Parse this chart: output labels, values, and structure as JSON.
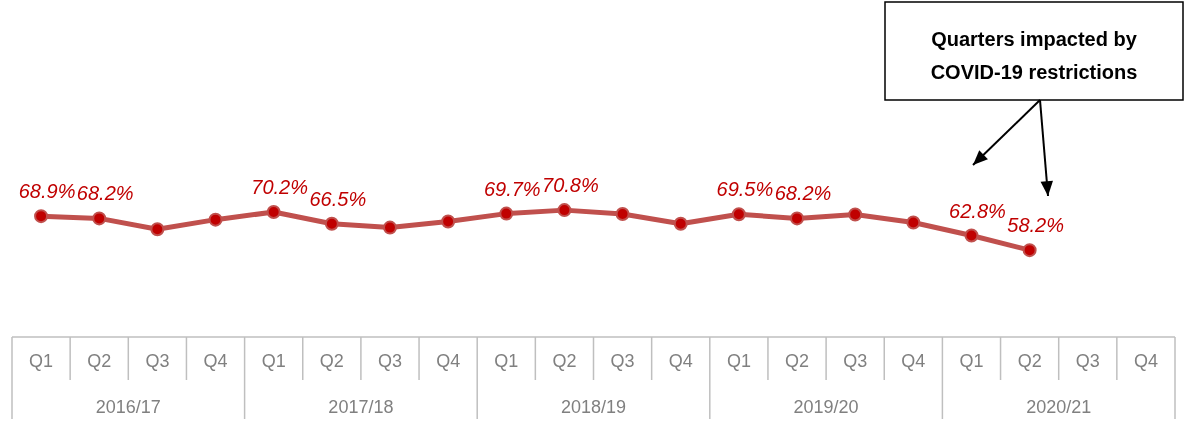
{
  "chart_data": {
    "type": "line",
    "categories": [
      "Q1",
      "Q2",
      "Q3",
      "Q4",
      "Q1",
      "Q2",
      "Q3",
      "Q4",
      "Q1",
      "Q2",
      "Q3",
      "Q4",
      "Q1",
      "Q2",
      "Q3",
      "Q4",
      "Q1",
      "Q2",
      "Q3",
      "Q4"
    ],
    "series": [
      {
        "color": "#c0504d",
        "values": [
          68.9,
          68.2,
          64.8,
          67.8,
          70.2,
          66.5,
          65.3,
          67.2,
          69.7,
          70.8,
          69.6,
          66.5,
          69.5,
          68.2,
          69.4,
          66.9,
          62.8,
          58.2,
          null,
          null
        ],
        "value_labels": [
          "68.9%",
          "68.2%",
          null,
          null,
          "70.2%",
          "66.5%",
          null,
          null,
          "69.7%",
          "70.8%",
          null,
          null,
          "69.5%",
          "68.2%",
          null,
          null,
          "62.8%",
          "58.2%",
          null,
          null
        ]
      }
    ],
    "annotations": [
      "2016/17",
      "2017/18",
      "2018/19",
      "2019/20",
      "2020/21",
      "Quarters impacted by COVID-19 restrictions"
    ],
    "marker": "circle",
    "line_style": "solid",
    "grid": false,
    "legend": false
  }
}
